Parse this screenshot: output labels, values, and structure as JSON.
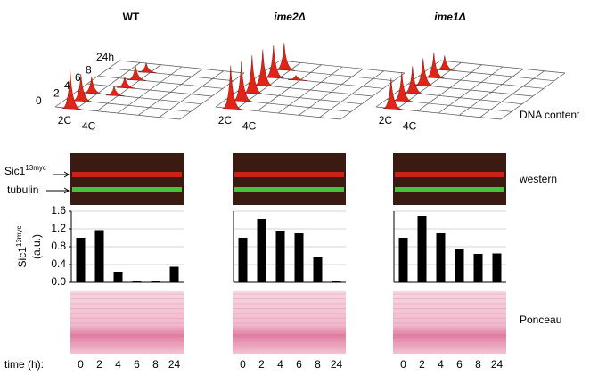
{
  "labels": {
    "dna_content": "DNA content",
    "western": "western",
    "ponceau": "Ponceau",
    "time": "time (h):",
    "sic1": "Sic1",
    "sic1_sup": "13myc",
    "tubulin": "tubulin",
    "facs_times": [
      "0",
      "2",
      "4",
      "6",
      "8",
      "24h"
    ],
    "c2": "2C",
    "c4": "4C"
  },
  "chart_data": [
    {
      "type": "bar",
      "title": "WT",
      "ylabel": "Sic1",
      "ylabel_sup": "13myc",
      "ylabel2": "(a.u.)",
      "categories": [
        "0",
        "2",
        "4",
        "6",
        "8",
        "24"
      ],
      "values": [
        1.0,
        1.17,
        0.24,
        0.04,
        0.03,
        0.35
      ],
      "color": "#000000",
      "ylim": [
        0,
        1.6
      ],
      "yticks": [
        {
          "value": 0,
          "label": "0.0"
        },
        0.4,
        0.8,
        1.2,
        1.6
      ],
      "grid": true,
      "tick_labels": true
    },
    {
      "type": "bar",
      "title": "ime2Δ",
      "categories": [
        "0",
        "2",
        "4",
        "6",
        "8",
        "24"
      ],
      "values": [
        1.0,
        1.42,
        1.16,
        1.1,
        0.56,
        0.04
      ],
      "color": "#000000",
      "ylim": [
        0,
        1.6
      ],
      "yticks": [
        0,
        0.4,
        0.8,
        1.2,
        1.6
      ],
      "grid": true,
      "tick_labels": false
    },
    {
      "type": "bar",
      "title": "ime1Δ",
      "categories": [
        "0",
        "2",
        "4",
        "6",
        "8",
        "24"
      ],
      "values": [
        1.0,
        1.49,
        1.1,
        0.76,
        0.64,
        0.65
      ],
      "color": "#000000",
      "ylim": [
        0,
        1.6
      ],
      "yticks": [
        0,
        0.4,
        0.8,
        1.2,
        1.6
      ],
      "grid": true,
      "tick_labels": false
    }
  ]
}
